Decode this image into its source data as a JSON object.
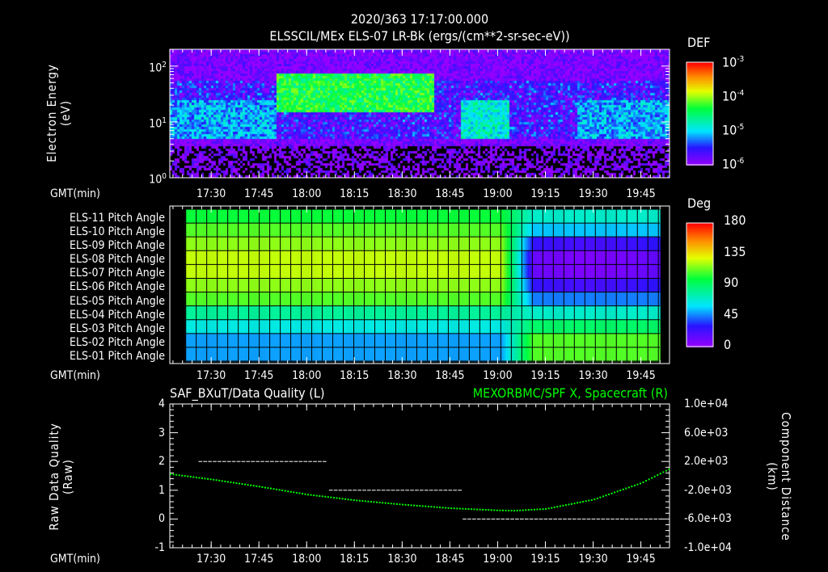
{
  "header": {
    "time": "2020/363 17:17:00.000"
  },
  "time_axis": {
    "label": "GMT(min)",
    "ticks": [
      "17:30",
      "17:45",
      "18:00",
      "18:15",
      "18:30",
      "18:45",
      "19:00",
      "19:15",
      "19:30",
      "19:45"
    ],
    "start_min": 1037,
    "end_min": 1194
  },
  "chart_data": [
    {
      "type": "heatmap",
      "title": "ELSSCIL/MEx ELS-07 LR-Bk  (ergs/(cm**2-sr-sec-eV))",
      "ylabel": "Electron Energy",
      "ylabel_units": "(eV)",
      "yscale": "log",
      "ylim": [
        1,
        200
      ],
      "y_ticks": [
        {
          "base": "10",
          "exp": "0"
        },
        {
          "base": "10",
          "exp": "1"
        },
        {
          "base": "10",
          "exp": "2"
        }
      ],
      "colorbar": {
        "label": "DEF",
        "scale": "log",
        "range": [
          1e-06,
          0.001
        ],
        "ticks": [
          {
            "base": "10",
            "exp": "-3"
          },
          {
            "base": "10",
            "exp": "-4"
          },
          {
            "base": "10",
            "exp": "-5"
          },
          {
            "base": "10",
            "exp": "-6"
          }
        ]
      },
      "features": [
        {
          "time": "17:17-17:50",
          "energy_eV": [
            5,
            25
          ],
          "level": 1e-05
        },
        {
          "time": "17:50-18:40",
          "energy_eV": [
            15,
            80
          ],
          "level": 6e-05
        },
        {
          "time": "18:48-19:03",
          "energy_eV": [
            5,
            25
          ],
          "level": 2e-05
        },
        {
          "time": "19:25-19:54",
          "energy_eV": [
            5,
            25
          ],
          "level": 1e-05
        }
      ]
    },
    {
      "type": "heatmap",
      "ylabel_rows": [
        "ELS-11 Pitch Angle",
        "ELS-10 Pitch Angle",
        "ELS-09 Pitch Angle",
        "ELS-08 Pitch Angle",
        "ELS-07 Pitch Angle",
        "ELS-06 Pitch Angle",
        "ELS-05 Pitch Angle",
        "ELS-04 Pitch Angle",
        "ELS-03 Pitch Angle",
        "ELS-02 Pitch Angle",
        "ELS-01 Pitch Angle"
      ],
      "colorbar": {
        "label": "Deg",
        "range": [
          0,
          180
        ],
        "ticks": [
          "180",
          "135",
          "90",
          "45",
          "0"
        ]
      },
      "time_range": [
        "17:22",
        "19:51"
      ],
      "transition_time": "19:07",
      "values_before": [
        100,
        110,
        118,
        125,
        125,
        118,
        110,
        80,
        65,
        50,
        50
      ],
      "values_after": [
        70,
        55,
        30,
        15,
        15,
        30,
        45,
        70,
        90,
        110,
        110
      ]
    },
    {
      "type": "line",
      "title_left": "SAF_BXuT/Data Quality (L)",
      "title_right": "MEXORBMC/SPF X, Spacecraft (R)",
      "ylabel_left": "Raw Data Quality",
      "ylabel_left_units": "(Raw)",
      "ylim_left": [
        -1,
        4
      ],
      "yticks_left": [
        "4",
        "3",
        "2",
        "1",
        "0",
        "-1"
      ],
      "ylabel_right": "Component Distance",
      "ylabel_right_units": "(km)",
      "ylim_right": [
        -10000,
        10000
      ],
      "yticks_right": [
        "1.0e+04",
        "6.0e+03",
        "2.0e+03",
        "-2.0e+03",
        "-6.0e+03",
        "-1.0e+04"
      ],
      "series": [
        {
          "name": "Data Quality",
          "axis": "left",
          "color": "#ffffff",
          "segments": [
            {
              "start": "17:26",
              "end": "18:06",
              "value": 2
            },
            {
              "start": "18:07",
              "end": "18:48",
              "value": 1
            },
            {
              "start": "18:49",
              "end": "19:51",
              "value": 0
            }
          ]
        },
        {
          "name": "SPF X",
          "axis": "right",
          "color": "#00ff00",
          "x": [
            "17:17",
            "17:30",
            "17:45",
            "18:00",
            "18:15",
            "18:30",
            "18:45",
            "19:00",
            "19:05",
            "19:15",
            "19:30",
            "19:45",
            "19:54"
          ],
          "y": [
            240,
            -500,
            -1500,
            -2600,
            -3400,
            -4000,
            -4500,
            -4800,
            -4840,
            -4600,
            -3300,
            -1000,
            1000
          ]
        }
      ]
    }
  ]
}
